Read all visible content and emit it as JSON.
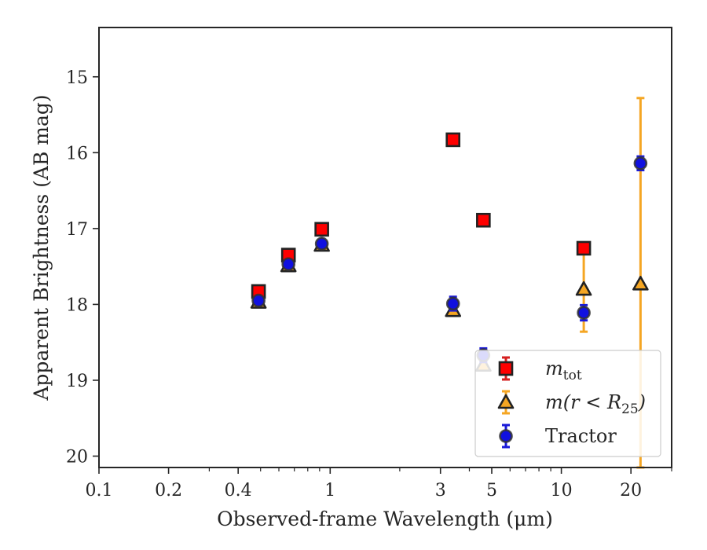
{
  "chart_data": {
    "type": "scatter",
    "xlabel": "Observed-frame Wavelength (μm)",
    "ylabel": "Apparent Brightness (AB mag)",
    "xscale": "log",
    "xlim": [
      0.1,
      30
    ],
    "ylim": [
      20.15,
      14.35
    ],
    "y_inverted": true,
    "x_ticks": [
      {
        "value": 0.1,
        "label": "0.1"
      },
      {
        "value": 0.2,
        "label": "0.2"
      },
      {
        "value": 0.4,
        "label": "0.4"
      },
      {
        "value": 1,
        "label": "1"
      },
      {
        "value": 3,
        "label": "3"
      },
      {
        "value": 5,
        "label": "5"
      },
      {
        "value": 10,
        "label": "10"
      },
      {
        "value": 20,
        "label": "20"
      }
    ],
    "y_ticks": [
      15,
      16,
      17,
      18,
      19,
      20
    ],
    "legend_position": "lower right",
    "series": [
      {
        "name": "m_tot",
        "legend_label": {
          "base": "m",
          "sub": "tot",
          "suffix": ""
        },
        "marker": "square",
        "color": "#ff0000",
        "edge_color": "#222222",
        "err_color": "#d62020",
        "points": [
          {
            "x": 0.49,
            "y": 17.83,
            "err": 0.05
          },
          {
            "x": 0.66,
            "y": 17.35,
            "err": 0.05
          },
          {
            "x": 0.92,
            "y": 17.01,
            "err": 0.05
          },
          {
            "x": 3.4,
            "y": 15.83,
            "err": 0.06
          },
          {
            "x": 4.6,
            "y": 16.89,
            "err": 0.06
          },
          {
            "x": 12.5,
            "y": 17.26,
            "err": 0.07
          }
        ]
      },
      {
        "name": "m(r < R25)",
        "legend_label": {
          "base": "m(r < R",
          "sub": "25",
          "suffix": ")"
        },
        "marker": "triangle",
        "color": "#f5a623",
        "edge_color": "#222222",
        "err_color": "#f5a623",
        "points": [
          {
            "x": 0.49,
            "y": 17.97,
            "err": 0.03
          },
          {
            "x": 0.66,
            "y": 17.49,
            "err": 0.03
          },
          {
            "x": 0.92,
            "y": 17.22,
            "err": 0.03
          },
          {
            "x": 3.4,
            "y": 18.08,
            "err": 0.04
          },
          {
            "x": 4.6,
            "y": 18.8,
            "err": 0.05
          },
          {
            "x": 12.5,
            "y": 17.8,
            "err": 0.56
          },
          {
            "x": 22.0,
            "y": 17.73,
            "err": 2.45
          }
        ]
      },
      {
        "name": "Tractor",
        "legend_label": {
          "base": "Tractor",
          "sub": "",
          "suffix": ""
        },
        "marker": "circle",
        "color": "#1010e0",
        "edge_color": "#333333",
        "err_color": "#1a1ad8",
        "points": [
          {
            "x": 0.49,
            "y": 17.95,
            "err": 0.04
          },
          {
            "x": 0.66,
            "y": 17.47,
            "err": 0.04
          },
          {
            "x": 0.92,
            "y": 17.2,
            "err": 0.04
          },
          {
            "x": 3.4,
            "y": 17.99,
            "err": 0.09
          },
          {
            "x": 4.6,
            "y": 18.67,
            "err": 0.09
          },
          {
            "x": 12.5,
            "y": 18.11,
            "err": 0.1
          },
          {
            "x": 22.0,
            "y": 16.14,
            "err": 0.09
          }
        ]
      }
    ]
  }
}
